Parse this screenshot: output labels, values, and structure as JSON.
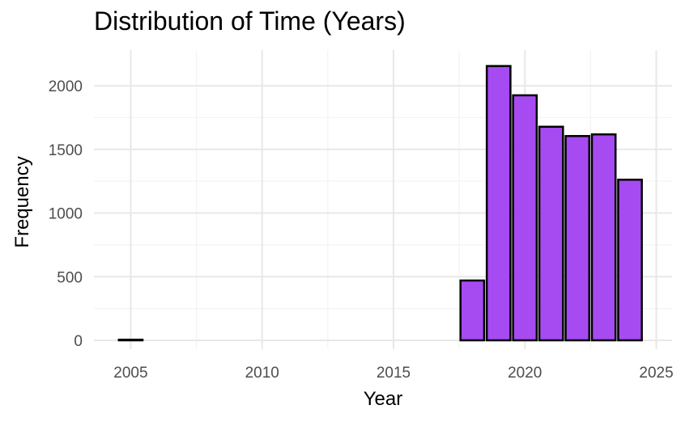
{
  "chart_data": {
    "type": "bar",
    "title": "Distribution of Time (Years)",
    "xlabel": "Year",
    "ylabel": "Frequency",
    "x": [
      2005,
      2018,
      2019,
      2020,
      2021,
      2022,
      2023,
      2024
    ],
    "values": [
      5,
      470,
      2155,
      1925,
      1678,
      1605,
      1618,
      1262
    ],
    "xlim": [
      2003.6,
      2025.6
    ],
    "ylim": [
      -70,
      2280
    ],
    "xticks": [
      2005,
      2010,
      2015,
      2020,
      2025
    ],
    "yticks": [
      0,
      500,
      1000,
      1500,
      2000
    ],
    "bar_width_years": 0.9,
    "grid": true,
    "legend": "none",
    "colors": {
      "bar_fill": "#a64af2",
      "bar_stroke": "#000000",
      "grid_major": "#e8e8e8",
      "grid_minor": "#f3f3f3"
    }
  }
}
